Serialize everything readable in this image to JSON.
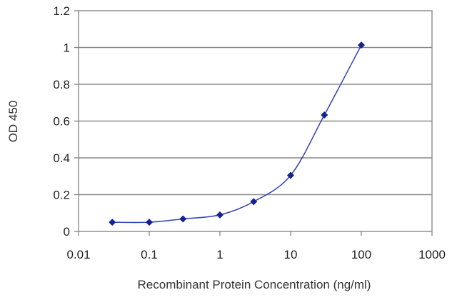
{
  "chart_data": {
    "type": "line",
    "title": "",
    "xlabel": "Recombinant Protein Concentration (ng/ml)",
    "ylabel": "OD 450",
    "xscale": "log",
    "xlim": [
      0.01,
      1000
    ],
    "ylim": [
      0,
      1.2
    ],
    "x_ticks": [
      "0.01",
      "0.1",
      "1",
      "10",
      "100",
      "1000"
    ],
    "y_ticks": [
      "0",
      "0.2",
      "0.4",
      "0.6",
      "0.8",
      "1",
      "1.2"
    ],
    "grid": "horizontal",
    "legend": "none",
    "line_color": "#3a49b8",
    "marker_color": "#16238a",
    "series": [
      {
        "x": [
          0.03,
          0.1,
          0.3,
          1,
          3,
          10,
          30,
          100
        ],
        "values": [
          0.05,
          0.05,
          0.068,
          0.09,
          0.162,
          0.305,
          0.633,
          1.013
        ]
      }
    ]
  }
}
